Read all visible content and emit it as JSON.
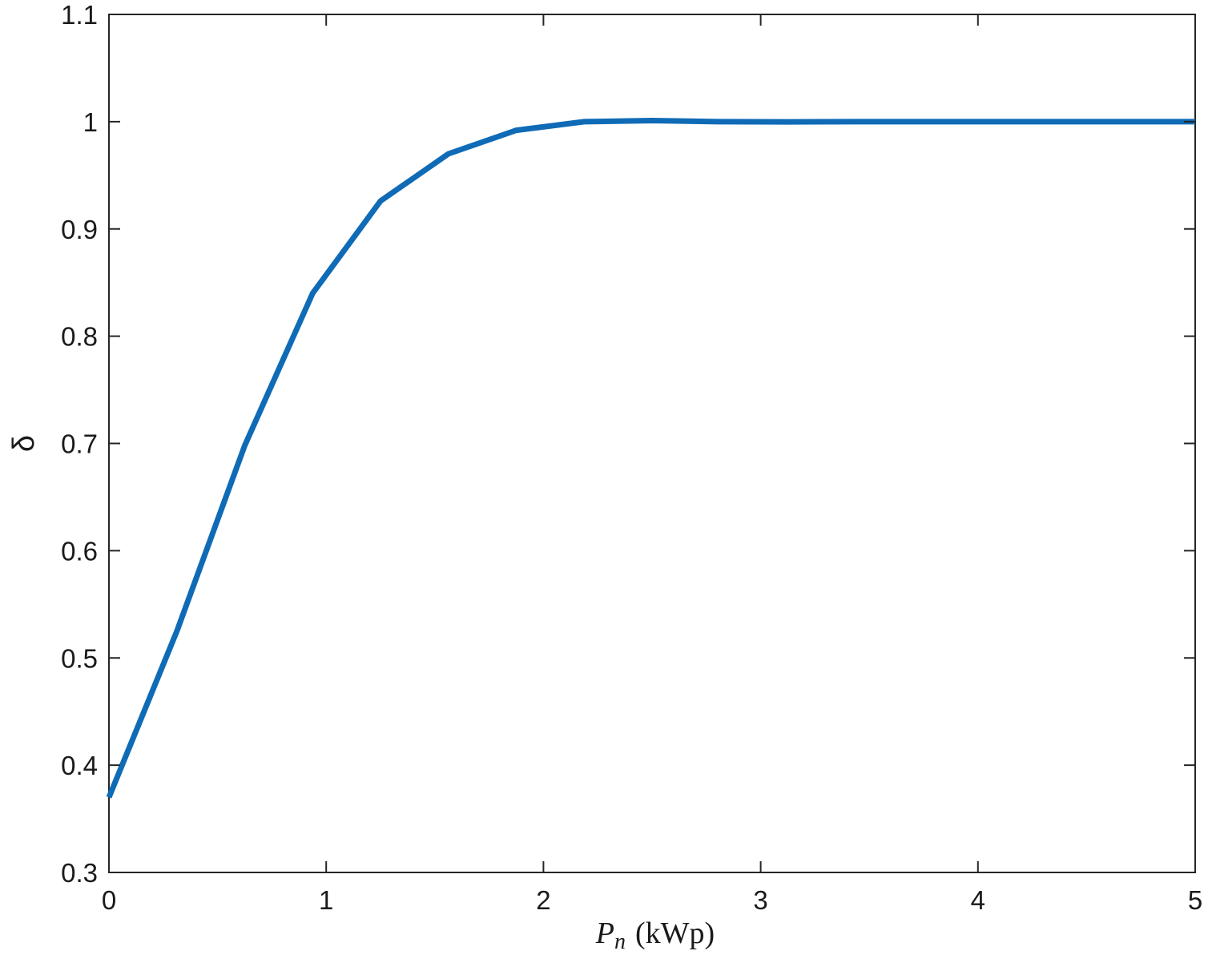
{
  "chart_data": {
    "type": "line",
    "xlabel": {
      "symbol": "P",
      "subscript": "n",
      "unit": "(kWp)"
    },
    "ylabel": "δ",
    "xlim": [
      0,
      5
    ],
    "ylim": [
      0.3,
      1.1
    ],
    "x_ticks": [
      "0",
      "1",
      "2",
      "3",
      "4",
      "5"
    ],
    "y_ticks": [
      "0.3",
      "0.4",
      "0.5",
      "0.6",
      "0.7",
      "0.8",
      "0.9",
      "1",
      "1.1"
    ],
    "grid": false,
    "series": [
      {
        "color": "#0f6bb6",
        "x": [
          0,
          0.3125,
          0.625,
          0.9375,
          1.25,
          1.5625,
          1.875,
          2.1875,
          2.5,
          2.8125,
          3.125,
          3.4375,
          3.75,
          4.0625,
          4.375,
          4.6875,
          5
        ],
        "y": [
          0.37,
          0.525,
          0.698,
          0.84,
          0.926,
          0.97,
          0.992,
          1.0,
          1.001,
          1.0,
          0.9998,
          1.0,
          1.0,
          1.0,
          1.0,
          1.0,
          1.0
        ]
      }
    ]
  }
}
